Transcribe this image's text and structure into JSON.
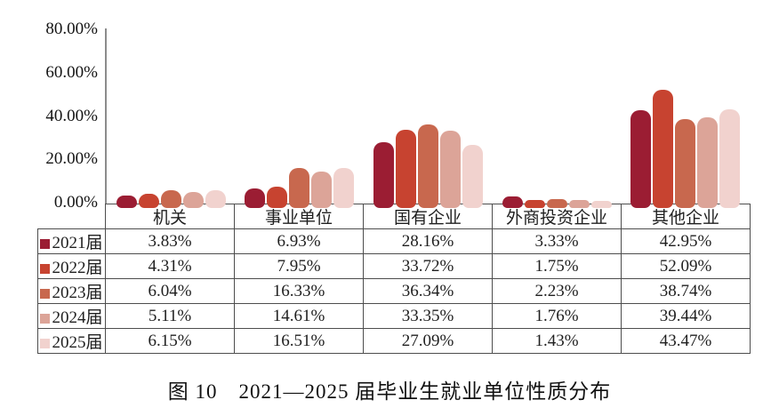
{
  "caption": "图 10　2021—2025 届毕业生就业单位性质分布",
  "chart_data": {
    "type": "bar",
    "title": "图 10　2021—2025 届毕业生就业单位性质分布",
    "categories": [
      "机关",
      "事业单位",
      "国有企业",
      "外商投资企业",
      "其他企业"
    ],
    "series": [
      {
        "name": "2021届",
        "color": "#9B1D33",
        "values": [
          3.83,
          6.93,
          28.16,
          3.33,
          42.95
        ]
      },
      {
        "name": "2022届",
        "color": "#C74330",
        "values": [
          4.31,
          7.95,
          33.72,
          1.75,
          52.09
        ]
      },
      {
        "name": "2023届",
        "color": "#C8684E",
        "values": [
          6.04,
          16.33,
          36.34,
          2.23,
          38.74
        ]
      },
      {
        "name": "2024届",
        "color": "#DCA498",
        "values": [
          5.11,
          14.61,
          33.35,
          1.76,
          39.44
        ]
      },
      {
        "name": "2025届",
        "color": "#F1D2CE",
        "values": [
          6.15,
          16.51,
          27.09,
          1.43,
          43.47
        ]
      }
    ],
    "y_ticks": [
      "80.00%",
      "60.00%",
      "40.00%",
      "20.00%",
      "0.00%"
    ],
    "ylim": [
      0,
      80
    ],
    "value_suffix": "%",
    "grid": false,
    "legend_position": "table-left-column",
    "axis_color": "#8c8c8c",
    "table_border_color": "#4d4d4d"
  }
}
